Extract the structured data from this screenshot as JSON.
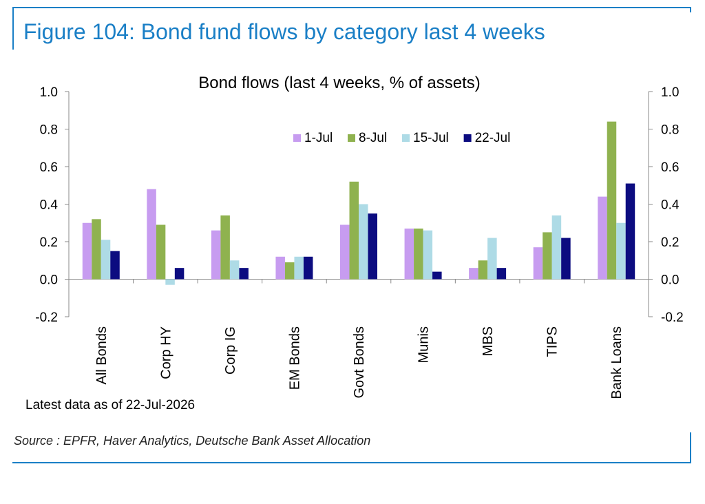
{
  "figure_title": "Figure 104: Bond fund flows by category last 4 weeks",
  "source_note": "Source : EPFR, Haver Analytics, Deutsche Bank Asset Allocation",
  "footnote": "Latest data as of 22-Jul-2026",
  "colors": {
    "accent": "#1a7fc6",
    "series": [
      "#c79cf0",
      "#8fb24f",
      "#aedbe6",
      "#0c0c80"
    ]
  },
  "chart_data": {
    "type": "bar",
    "title": "Bond flows (last 4 weeks, % of assets)",
    "categories": [
      "All Bonds",
      "Corp HY",
      "Corp IG",
      "EM Bonds",
      "Govt Bonds",
      "Munis",
      "MBS",
      "TIPS",
      "Bank Loans"
    ],
    "series": [
      {
        "name": "1-Jul",
        "values": [
          0.3,
          0.48,
          0.26,
          0.12,
          0.29,
          0.27,
          0.06,
          0.17,
          0.44
        ]
      },
      {
        "name": "8-Jul",
        "values": [
          0.32,
          0.29,
          0.34,
          0.09,
          0.52,
          0.27,
          0.1,
          0.25,
          0.84
        ]
      },
      {
        "name": "15-Jul",
        "values": [
          0.21,
          -0.03,
          0.1,
          0.12,
          0.4,
          0.26,
          0.22,
          0.34,
          0.3
        ]
      },
      {
        "name": "22-Jul",
        "values": [
          0.15,
          0.06,
          0.06,
          0.12,
          0.35,
          0.04,
          0.06,
          0.22,
          0.51
        ]
      }
    ],
    "ylim": [
      -0.2,
      1.0
    ],
    "yticks": [
      "-0.2",
      "0.0",
      "0.2",
      "0.4",
      "0.6",
      "0.8",
      "1.0"
    ],
    "secondary_axis": true,
    "legend_position": "top-center",
    "grid": false,
    "xlabel": "",
    "ylabel": ""
  }
}
